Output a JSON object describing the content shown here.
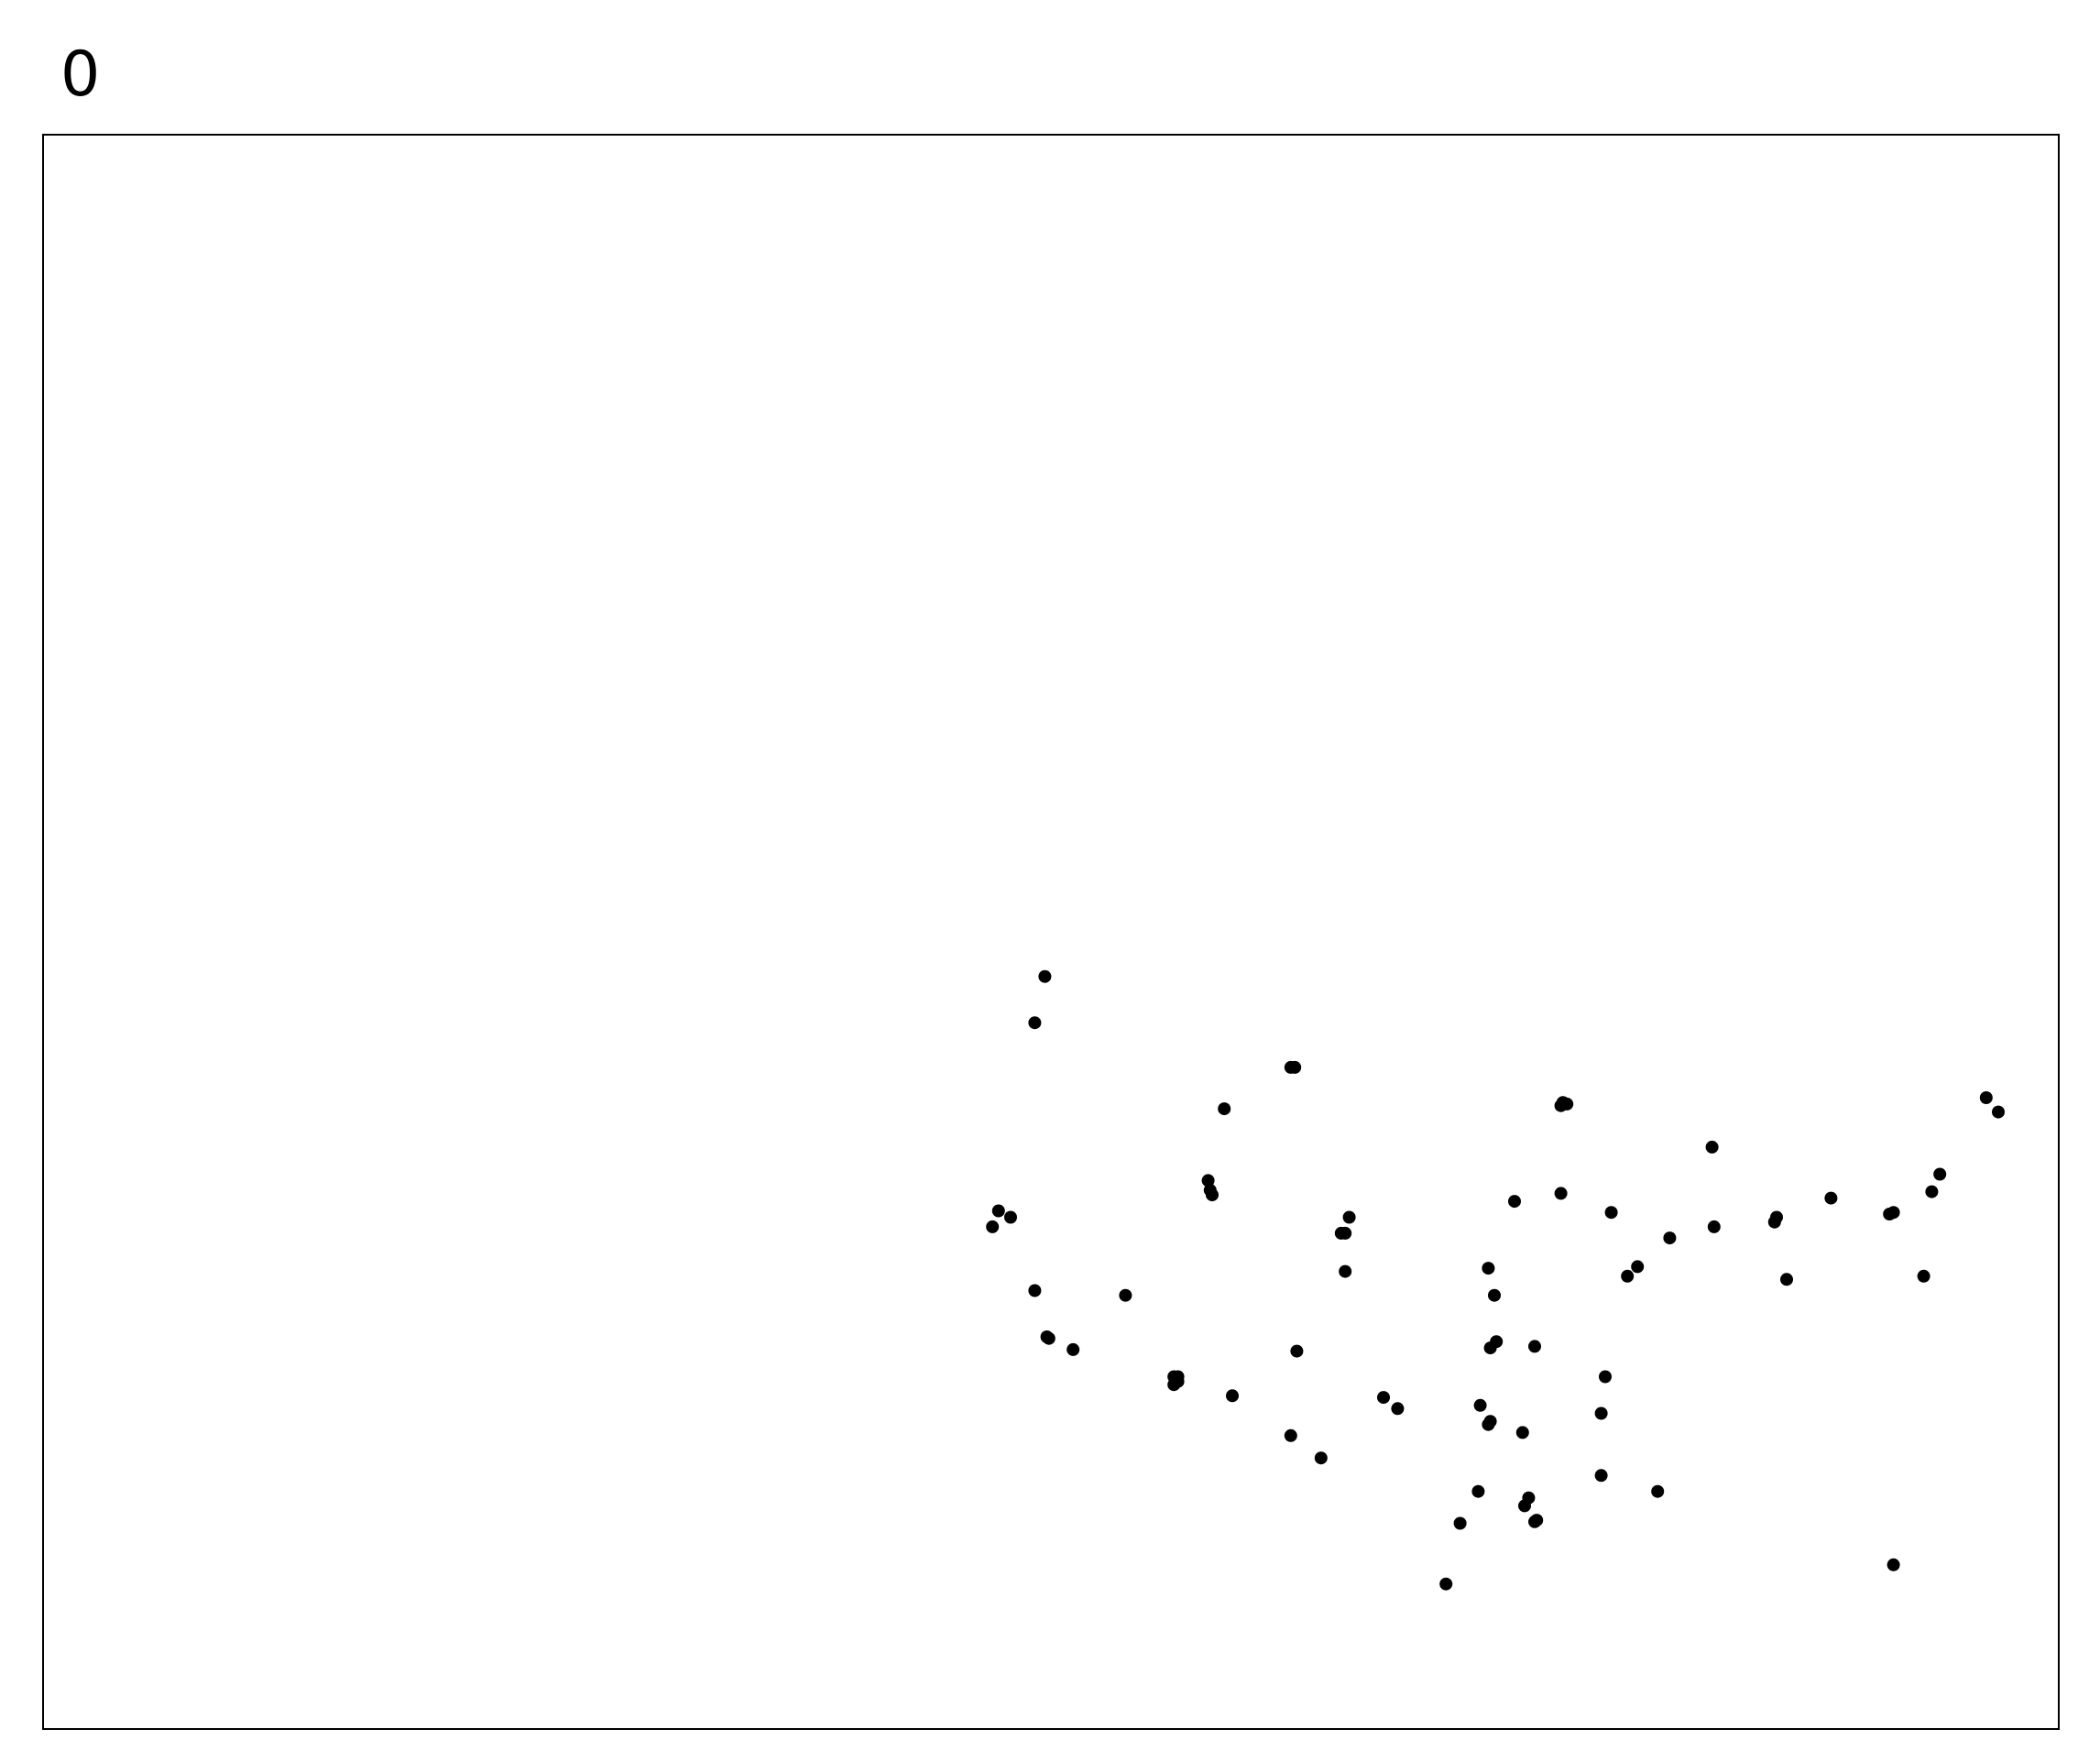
{
  "chart_data": {
    "type": "scatter",
    "title": "0",
    "xlabel": "",
    "ylabel": "",
    "xlim": [
      0,
      1
    ],
    "ylim": [
      0,
      1
    ],
    "grid": false,
    "ticks": false,
    "colors": {
      "marker": "#000000",
      "frame": "#000000",
      "background": "#ffffff"
    },
    "points": [
      {
        "x": 0.497,
        "y": 0.472
      },
      {
        "x": 0.492,
        "y": 0.443
      },
      {
        "x": 0.621,
        "y": 0.415
      },
      {
        "x": 0.619,
        "y": 0.415
      },
      {
        "x": 0.586,
        "y": 0.389
      },
      {
        "x": 0.754,
        "y": 0.393
      },
      {
        "x": 0.756,
        "y": 0.392
      },
      {
        "x": 0.753,
        "y": 0.391
      },
      {
        "x": 0.964,
        "y": 0.396
      },
      {
        "x": 0.97,
        "y": 0.387
      },
      {
        "x": 0.828,
        "y": 0.365
      },
      {
        "x": 0.578,
        "y": 0.344
      },
      {
        "x": 0.579,
        "y": 0.338
      },
      {
        "x": 0.58,
        "y": 0.335
      },
      {
        "x": 0.753,
        "y": 0.336
      },
      {
        "x": 0.73,
        "y": 0.331
      },
      {
        "x": 0.778,
        "y": 0.324
      },
      {
        "x": 0.887,
        "y": 0.333
      },
      {
        "x": 0.941,
        "y": 0.348
      },
      {
        "x": 0.937,
        "y": 0.337
      },
      {
        "x": 0.918,
        "y": 0.324
      },
      {
        "x": 0.916,
        "y": 0.323
      },
      {
        "x": 0.474,
        "y": 0.325
      },
      {
        "x": 0.471,
        "y": 0.315
      },
      {
        "x": 0.48,
        "y": 0.321
      },
      {
        "x": 0.648,
        "y": 0.321
      },
      {
        "x": 0.646,
        "y": 0.311
      },
      {
        "x": 0.644,
        "y": 0.311
      },
      {
        "x": 0.86,
        "y": 0.321
      },
      {
        "x": 0.859,
        "y": 0.318
      },
      {
        "x": 0.829,
        "y": 0.315
      },
      {
        "x": 0.807,
        "y": 0.308
      },
      {
        "x": 0.791,
        "y": 0.29
      },
      {
        "x": 0.786,
        "y": 0.284
      },
      {
        "x": 0.717,
        "y": 0.289
      },
      {
        "x": 0.646,
        "y": 0.287
      },
      {
        "x": 0.865,
        "y": 0.282
      },
      {
        "x": 0.933,
        "y": 0.284
      },
      {
        "x": 0.492,
        "y": 0.275
      },
      {
        "x": 0.537,
        "y": 0.272
      },
      {
        "x": 0.72,
        "y": 0.272
      },
      {
        "x": 0.498,
        "y": 0.246
      },
      {
        "x": 0.499,
        "y": 0.245
      },
      {
        "x": 0.511,
        "y": 0.238
      },
      {
        "x": 0.622,
        "y": 0.237
      },
      {
        "x": 0.721,
        "y": 0.243
      },
      {
        "x": 0.718,
        "y": 0.239
      },
      {
        "x": 0.74,
        "y": 0.24
      },
      {
        "x": 0.561,
        "y": 0.221
      },
      {
        "x": 0.563,
        "y": 0.221
      },
      {
        "x": 0.563,
        "y": 0.218
      },
      {
        "x": 0.561,
        "y": 0.216
      },
      {
        "x": 0.59,
        "y": 0.209
      },
      {
        "x": 0.665,
        "y": 0.208
      },
      {
        "x": 0.672,
        "y": 0.201
      },
      {
        "x": 0.775,
        "y": 0.221
      },
      {
        "x": 0.773,
        "y": 0.198
      },
      {
        "x": 0.713,
        "y": 0.203
      },
      {
        "x": 0.718,
        "y": 0.193
      },
      {
        "x": 0.717,
        "y": 0.191
      },
      {
        "x": 0.734,
        "y": 0.186
      },
      {
        "x": 0.619,
        "y": 0.184
      },
      {
        "x": 0.634,
        "y": 0.17
      },
      {
        "x": 0.773,
        "y": 0.159
      },
      {
        "x": 0.801,
        "y": 0.149
      },
      {
        "x": 0.712,
        "y": 0.149
      },
      {
        "x": 0.737,
        "y": 0.145
      },
      {
        "x": 0.735,
        "y": 0.14
      },
      {
        "x": 0.741,
        "y": 0.131
      },
      {
        "x": 0.74,
        "y": 0.13
      },
      {
        "x": 0.703,
        "y": 0.129
      },
      {
        "x": 0.918,
        "y": 0.103
      },
      {
        "x": 0.696,
        "y": 0.091
      }
    ]
  }
}
